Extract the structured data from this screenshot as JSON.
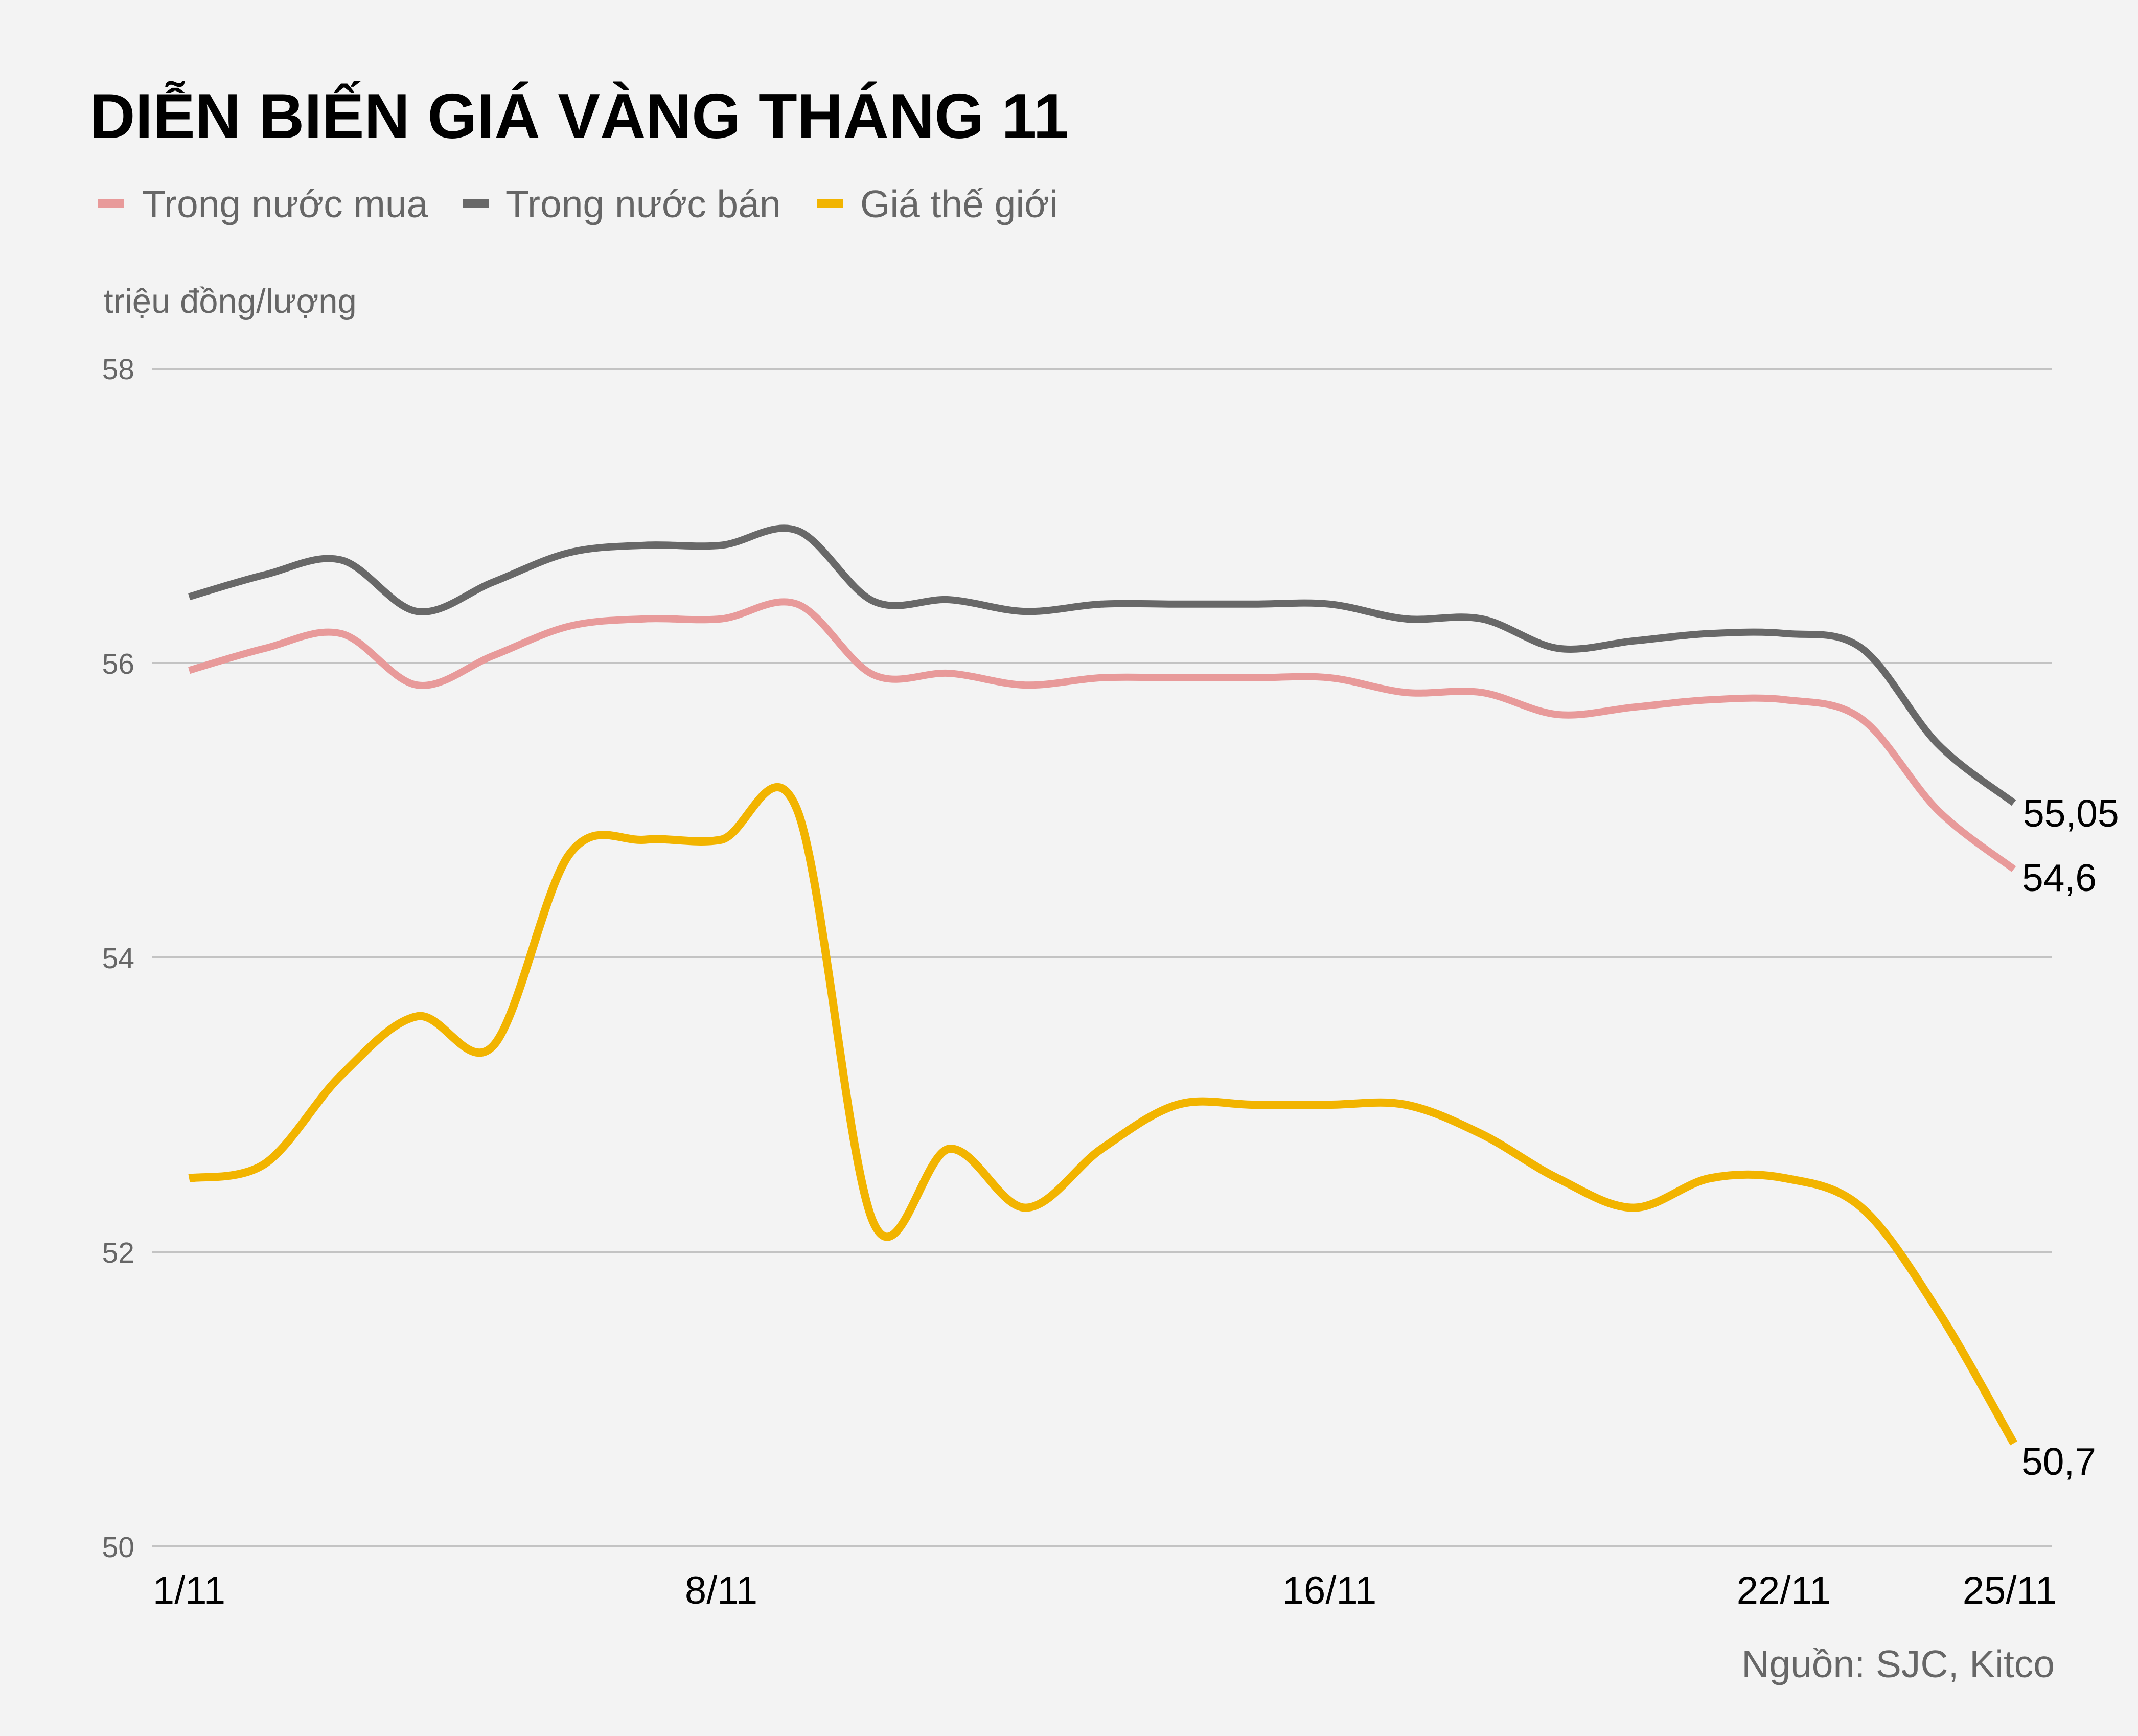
{
  "header": {
    "title": "DIỄN BIẾN GIÁ VÀNG THÁNG 11",
    "unit": "triệu đồng/lượng"
  },
  "legend": {
    "items": [
      {
        "label": "Trong nước mua",
        "color": "#e89a9a"
      },
      {
        "label": "Trong nước bán",
        "color": "#686868"
      },
      {
        "label": "Giá thế giới",
        "color": "#f2b400"
      }
    ]
  },
  "axes": {
    "y_ticks": [
      "58",
      "56",
      "54",
      "52",
      "50"
    ],
    "x_ticks": [
      "1/11",
      "8/11",
      "16/11",
      "22/11",
      "25/11"
    ]
  },
  "end_labels": {
    "sell": "55,05",
    "buy": "54,6",
    "world": "50,7"
  },
  "footer": {
    "source": "Nguồn: SJC, Kitco"
  },
  "chart_data": {
    "type": "line",
    "title": "DIỄN BIẾN GIÁ VÀNG THÁNG 11",
    "xlabel": "",
    "ylabel": "triệu đồng/lượng",
    "ylim": [
      50,
      58
    ],
    "yticks": [
      50,
      52,
      54,
      56,
      58
    ],
    "grid": true,
    "legend_position": "top-left",
    "smooth": true,
    "x": [
      "1/11",
      "2/11",
      "3/11",
      "4/11",
      "5/11",
      "6/11",
      "7/11",
      "8/11",
      "9/11",
      "10/11",
      "11/11",
      "12/11",
      "13/11",
      "14/11",
      "15/11",
      "16/11",
      "17/11",
      "18/11",
      "19/11",
      "20/11",
      "21/11",
      "22/11",
      "23/11",
      "24/11",
      "25/11"
    ],
    "x_tick_labels": {
      "0": "1/11",
      "7": "8/11",
      "15": "16/11",
      "21": "22/11",
      "24": "25/11"
    },
    "series": [
      {
        "name": "Trong nước mua",
        "color": "#e89a9a",
        "values": [
          55.95,
          56.1,
          56.2,
          55.85,
          56.05,
          56.25,
          56.3,
          56.3,
          56.4,
          55.92,
          55.93,
          55.85,
          55.9,
          55.9,
          55.9,
          55.9,
          55.8,
          55.8,
          55.65,
          55.7,
          55.75,
          55.75,
          55.62,
          55.0,
          54.6
        ],
        "end_label": "54,6"
      },
      {
        "name": "Trong nước bán",
        "color": "#686868",
        "values": [
          56.45,
          56.6,
          56.7,
          56.35,
          56.55,
          56.75,
          56.8,
          56.8,
          56.9,
          56.42,
          56.43,
          56.35,
          56.4,
          56.4,
          56.4,
          56.4,
          56.3,
          56.3,
          56.1,
          56.15,
          56.2,
          56.2,
          56.1,
          55.45,
          55.05
        ],
        "end_label": "55,05"
      },
      {
        "name": "Giá thế giới",
        "color": "#f2b400",
        "values": [
          52.5,
          52.6,
          53.2,
          53.6,
          53.4,
          54.7,
          54.8,
          54.8,
          55.0,
          52.2,
          52.7,
          52.3,
          52.7,
          53.0,
          53.0,
          53.0,
          53.0,
          52.8,
          52.5,
          52.3,
          52.5,
          52.5,
          52.3,
          51.6,
          50.7
        ],
        "end_label": "50,7"
      }
    ],
    "annotations": [
      "55,05",
      "54,6",
      "50,7"
    ],
    "source": "Nguồn: SJC, Kitco"
  }
}
